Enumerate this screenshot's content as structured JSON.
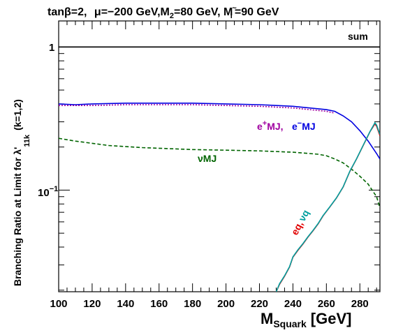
{
  "chart_data": {
    "type": "line",
    "title_parts": {
      "tan": "tan",
      "beta": "β",
      "eq2": "=2,",
      "mu": "μ",
      "mu_val": "=−200 GeV,M",
      "m2_sub": "2",
      "m2_val": "=80 GeV, M",
      "mt_sub": "~",
      "mt_sub2": "l",
      "mt_val": "=90 GeV"
    },
    "xlabel": {
      "main": "M",
      "sub": "Squark",
      "unit": "[GeV]"
    },
    "ylabel": {
      "main": "Branching Ratio at Limit for  λ'",
      "sub": "11k",
      "tail": "(k=1,2)"
    },
    "x_ticks": [
      "100",
      "120",
      "140",
      "160",
      "180",
      "200",
      "220",
      "240",
      "260",
      "280"
    ],
    "y_tick_labels": {
      "one": "1",
      "tenth_base": "10",
      "tenth_exp": "−1"
    },
    "xlim": [
      100,
      292
    ],
    "ylim": [
      0.0195,
      1.52
    ],
    "yscale": "log",
    "labels": {
      "sum": "sum",
      "eplus": "e",
      "eplus_sup": "+",
      "eplus_tail": "MJ,",
      "eminus": "e",
      "eminus_sup": "−",
      "eminus_tail": "MJ",
      "nuMJ": "νMJ",
      "eq": "eq",
      "comma": ",",
      "nuq": "νq"
    },
    "colors": {
      "sum": "#000000",
      "eplusMJ": "#a000a0",
      "eminusMJ": "#0000e0",
      "nuMJ": "#006400",
      "eq": "#e00000",
      "nuq": "#00a0a0"
    },
    "series": [
      {
        "key": "sum",
        "style": "solid",
        "x": [
          100,
          150,
          200,
          250,
          292
        ],
        "y": [
          1,
          1,
          1,
          1,
          1
        ]
      },
      {
        "key": "eminusMJ",
        "style": "solid",
        "x": [
          100,
          110,
          120,
          140,
          160,
          180,
          200,
          220,
          240,
          250,
          260,
          265,
          270,
          275,
          280,
          285,
          290,
          292
        ],
        "y": [
          0.4,
          0.395,
          0.4,
          0.405,
          0.405,
          0.405,
          0.4,
          0.395,
          0.385,
          0.375,
          0.365,
          0.355,
          0.33,
          0.3,
          0.26,
          0.22,
          0.18,
          0.165
        ]
      },
      {
        "key": "eplusMJ",
        "style": "dotted",
        "x": [
          100,
          120,
          140,
          160,
          180,
          200,
          220,
          240,
          250,
          260,
          265
        ],
        "y": [
          0.39,
          0.39,
          0.395,
          0.395,
          0.395,
          0.39,
          0.385,
          0.375,
          0.365,
          0.355,
          0.345
        ]
      },
      {
        "key": "nuMJ",
        "style": "dashed",
        "x": [
          100,
          110,
          130,
          150,
          180,
          200,
          220,
          240,
          250,
          255,
          260,
          265,
          270,
          275,
          280,
          285,
          290,
          292
        ],
        "y": [
          0.23,
          0.22,
          0.205,
          0.198,
          0.192,
          0.19,
          0.188,
          0.184,
          0.18,
          0.178,
          0.174,
          0.165,
          0.155,
          0.14,
          0.125,
          0.11,
          0.09,
          0.075
        ]
      },
      {
        "key": "eq",
        "style": "solid",
        "x": [
          230,
          232,
          235,
          238,
          240,
          243,
          246,
          249,
          252,
          255,
          258,
          262,
          266,
          270,
          274,
          278,
          282,
          286,
          289,
          290,
          292
        ],
        "y": [
          0.0195,
          0.022,
          0.025,
          0.029,
          0.034,
          0.038,
          0.042,
          0.047,
          0.052,
          0.058,
          0.066,
          0.076,
          0.088,
          0.105,
          0.135,
          0.165,
          0.205,
          0.255,
          0.29,
          0.28,
          0.24
        ]
      },
      {
        "key": "nuq",
        "style": "solid",
        "x": [
          230,
          232,
          235,
          238,
          240,
          243,
          246,
          249,
          252,
          255,
          258,
          262,
          266,
          270,
          274,
          278,
          282,
          286,
          289,
          290,
          292
        ],
        "y": [
          0.0195,
          0.0222,
          0.0252,
          0.0292,
          0.0342,
          0.0383,
          0.0423,
          0.0473,
          0.0523,
          0.0583,
          0.0663,
          0.0763,
          0.0883,
          0.1053,
          0.1355,
          0.1655,
          0.2055,
          0.2555,
          0.295,
          0.285,
          0.245
        ]
      }
    ]
  }
}
